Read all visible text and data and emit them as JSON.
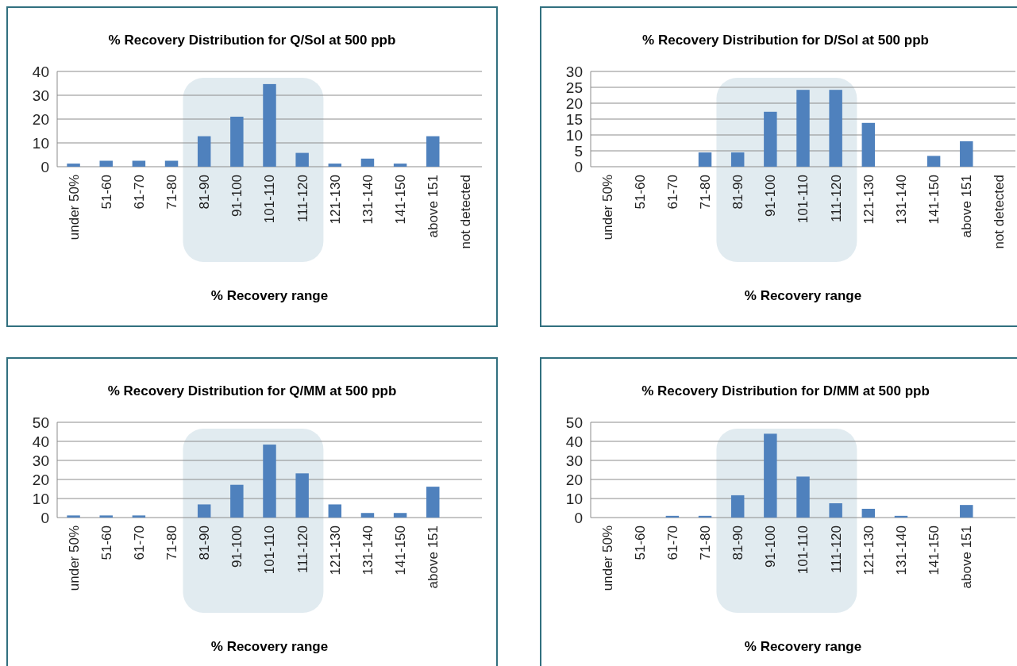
{
  "chart_data": [
    {
      "type": "bar",
      "title": "% Recovery Distribution  for Q/Sol at 500 ppb",
      "xlabel": "% Recovery range",
      "categories": [
        "under  50%",
        "51-60",
        "61-70",
        "71-80",
        "81-90",
        "91-100",
        "101-110",
        "111-120",
        "121-130",
        "131-140",
        "141-150",
        "above 151",
        "not detected"
      ],
      "values": [
        1.3,
        2.5,
        2.5,
        2.5,
        12.8,
        21,
        34.7,
        5.8,
        1.3,
        3.4,
        1.3,
        12.8,
        0
      ],
      "color": "#4f81bd",
      "ylim": [
        0,
        40
      ],
      "yticks": [
        0,
        10,
        20,
        30,
        40
      ],
      "grid": "y",
      "bands": [
        {
          "axis": "x",
          "from": "81-90",
          "to": "111-120",
          "color": "#dce8ed"
        }
      ]
    },
    {
      "type": "bar",
      "title": "% Recovery Distribution  for D/Sol at 500 ppb",
      "xlabel": "% Recovery range",
      "categories": [
        "under  50%",
        "51-60",
        "61-70",
        "71-80",
        "81-90",
        "91-100",
        "101-110",
        "111-120",
        "121-130",
        "131-140",
        "141-150",
        "above 151",
        "not detected"
      ],
      "values": [
        0,
        0,
        0,
        4.5,
        4.5,
        17.3,
        24.2,
        24.2,
        13.8,
        0,
        3.4,
        8,
        0
      ],
      "color": "#4f81bd",
      "ylim": [
        0,
        30
      ],
      "yticks": [
        0,
        5,
        10,
        15,
        20,
        25,
        30
      ],
      "grid": "y",
      "bands": [
        {
          "axis": "x",
          "from": "81-90",
          "to": "111-120",
          "color": "#dce8ed"
        }
      ]
    },
    {
      "type": "bar",
      "title": "% Recovery Distribution  for Q/MM at 500 ppb",
      "xlabel": "% Recovery range",
      "categories": [
        "under  50%",
        "51-60",
        "61-70",
        "71-80",
        "81-90",
        "91-100",
        "101-110",
        "111-120",
        "121-130",
        "131-140",
        "141-150",
        "above 151",
        null
      ],
      "values": [
        1.1,
        1.1,
        1.1,
        0,
        6.9,
        17.2,
        38.3,
        23.2,
        6.9,
        2.4,
        2.4,
        16.2,
        0
      ],
      "color": "#4f81bd",
      "ylim": [
        0,
        50
      ],
      "yticks": [
        0,
        10,
        20,
        30,
        40,
        50
      ],
      "grid": "y",
      "bands": [
        {
          "axis": "x",
          "from": "81-90",
          "to": "111-120",
          "color": "#dce8ed"
        }
      ]
    },
    {
      "type": "bar",
      "title": "% Recovery Distribution  for D/MM at 500 ppb",
      "xlabel": "% Recovery range",
      "categories": [
        "under  50%",
        "51-60",
        "61-70",
        "71-80",
        "81-90",
        "91-100",
        "101-110",
        "111-120",
        "121-130",
        "131-140",
        "141-150",
        "above 151",
        null
      ],
      "values": [
        0,
        0,
        0.9,
        0.9,
        11.7,
        44,
        21.5,
        7.5,
        4.6,
        0.9,
        0,
        6.6,
        0
      ],
      "color": "#4f81bd",
      "ylim": [
        0,
        50
      ],
      "yticks": [
        0,
        10,
        20,
        30,
        40,
        50
      ],
      "grid": "y",
      "bands": [
        {
          "axis": "x",
          "from": "81-90",
          "to": "111-120",
          "color": "#dce8ed"
        }
      ]
    }
  ]
}
